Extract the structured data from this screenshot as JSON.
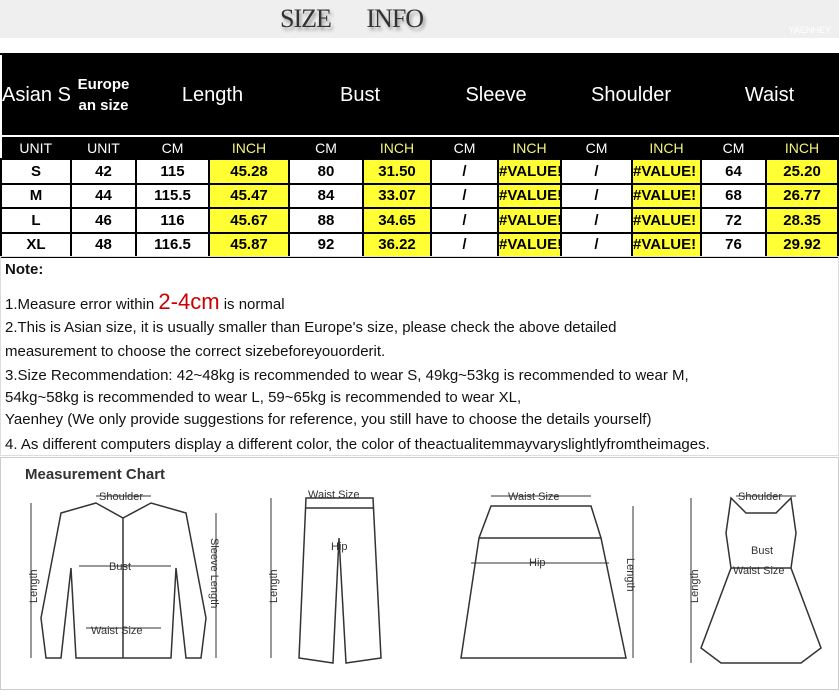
{
  "title": "SIZE INFO",
  "watermark": "YAENHEY",
  "table": {
    "headers": [
      "Asian Size",
      "Europe an size",
      "Length",
      "Bust",
      "Sleeve",
      "Shoulder",
      "Waist"
    ],
    "units": [
      "UNIT",
      "UNIT",
      "CM",
      "INCH",
      "CM",
      "INCH",
      "CM",
      "INCH",
      "CM",
      "INCH",
      "CM",
      "INCH"
    ],
    "rows": [
      [
        "S",
        "42",
        "115",
        "45.28",
        "80",
        "31.50",
        "/",
        "#VALUE!",
        "/",
        "#VALUE!",
        "64",
        "25.20"
      ],
      [
        "M",
        "44",
        "115.5",
        "45.47",
        "84",
        "33.07",
        "/",
        "#VALUE!",
        "/",
        "#VALUE!",
        "68",
        "26.77"
      ],
      [
        "L",
        "46",
        "116",
        "45.67",
        "88",
        "34.65",
        "/",
        "#VALUE!",
        "/",
        "#VALUE!",
        "72",
        "28.35"
      ],
      [
        "XL",
        "48",
        "116.5",
        "45.87",
        "92",
        "36.22",
        "/",
        "#VALUE!",
        "/",
        "#VALUE!",
        "76",
        "29.92"
      ]
    ]
  },
  "notes": {
    "heading": "Note:",
    "n1a": "1.Measure error within ",
    "n1b": "2-4cm",
    "n1c": " is normal",
    "n2a": "2.This is Asian size, it is usually smaller than Europe's size, please check the above detailed",
    "n2b": "measurement to choose the correct sizebeforeyouorderit.",
    "n3a": "3.Size Recommendation:   42~48kg is recommended to wear S, 49kg~53kg is recommended to wear M,",
    "n3b": "54kg~58kg is recommended to wear L, 59~65kg is recommended to wear XL,",
    "n3c": "Yaenhey (We only provide suggestions for reference, you still have to choose the details yourself)",
    "n4": "4. As different computers display a different color, the color of theactualitemmayvaryslightlyfromtheimages."
  },
  "chart": {
    "title": "Measurement Chart",
    "labels": {
      "shoulder": "Shoulder",
      "bust": "Bust",
      "sleeve": "Sleeve Length",
      "length": "Length",
      "waist": "Waist Size",
      "hip": "Hip"
    }
  },
  "colors": {
    "highlight": "#ffff33",
    "note": "#cc0000"
  }
}
